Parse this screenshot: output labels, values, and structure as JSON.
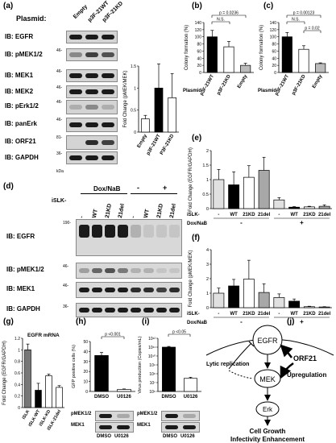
{
  "panels": {
    "a": {
      "label": "(a)",
      "plasmid_label": "Plasmid:",
      "lanes": [
        "Empty",
        "p3F-21WT",
        "p3F-21KD"
      ],
      "blots": [
        {
          "name": "IB: EGFR",
          "mw": ""
        },
        {
          "name": "IB: pMEK1/2",
          "mw": "46-"
        },
        {
          "name": "IB: MEK1",
          "mw": "46-"
        },
        {
          "name": "IB: MEK2",
          "mw": "46-"
        },
        {
          "name": "IB: pErk1/2",
          "mw": "46-"
        },
        {
          "name": "IB: panErk",
          "mw": "46-"
        },
        {
          "name": "IB: ORF21",
          "mw": "81-"
        },
        {
          "name": "IB: GAPDH",
          "mw": "36-"
        }
      ],
      "kda": "kDa"
    },
    "b": {
      "label": "(b)",
      "pval": "p = 0.0236",
      "ns": "N.S.",
      "plasmid": "Plasmid"
    },
    "c": {
      "label": "(c)",
      "pval": "p = 0.00123",
      "ns": "N.S.",
      "pval2": "p = 0.02",
      "plasmid": "Plasmid"
    },
    "d": {
      "label": "(d)",
      "dox_label": "Dox/NaB",
      "dox_minus": "-",
      "dox_plus": "+",
      "islk": "iSLK-",
      "lanes": [
        "-",
        "WT",
        "21KD",
        "21del",
        "-",
        "WT",
        "21KD",
        "21del"
      ],
      "blots": [
        {
          "name": "IB: EGFR",
          "mw": "190-"
        },
        {
          "name": "IB: pMEK1/2",
          "mw": "46-"
        },
        {
          "name": "IB: MEK1",
          "mw": "46-"
        },
        {
          "name": "IB: GAPDH",
          "mw": "36-"
        }
      ]
    },
    "e": {
      "label": "(e)",
      "islk": "iSLK-",
      "dox": "Dox/NaB",
      "minus": "-",
      "plus": "+"
    },
    "f": {
      "label": "(f)",
      "islk": "iSLK-",
      "dox": "Dox/NaB",
      "minus": "-",
      "plus": "+"
    },
    "g": {
      "label": "(g)",
      "inner_title": "EGFR mRNA"
    },
    "h": {
      "label": "(h)",
      "pval": "p <0.001",
      "blots": [
        "pMEK1/2",
        "MEK1"
      ],
      "lanes": [
        "DMSO",
        "U0126"
      ]
    },
    "i": {
      "label": "(i)",
      "pval": "p <0.05",
      "blots": [
        "pMEK1/2",
        "MEK1"
      ],
      "lanes": [
        "DMSO",
        "U0126"
      ]
    },
    "j": {
      "label": "(j)",
      "nodes": [
        "EGFR",
        "MEK",
        "Erk"
      ],
      "orf21": "ORF21",
      "upregulation": "Upregulation",
      "lytic": "Lytic replication",
      "outcome_line1": "Cell Growth",
      "outcome_line2": "Infectivity Enhancement"
    }
  },
  "chart_data": [
    {
      "panel": "a",
      "type": "bar",
      "categories": [
        "Empty",
        "p3F-21WT",
        "P3F-21KD"
      ],
      "values": [
        0.3,
        1.0,
        0.78
      ],
      "errors": [
        0.08,
        0.55,
        0.55
      ],
      "ylabel": "Fold Change (pMEK/MEK)",
      "ylim": [
        0,
        1.5
      ],
      "yticks": [
        "0",
        "0.5",
        "1",
        "1.5"
      ]
    },
    {
      "panel": "b",
      "type": "bar",
      "categories": [
        "p3F-21WT",
        "p3F-21KD",
        "Empty"
      ],
      "values": [
        100,
        72,
        20
      ],
      "errors": [
        18,
        15,
        6
      ],
      "ylabel": "Colony formation (%)",
      "ylim": [
        0,
        140
      ],
      "yticks": [
        "0",
        "20",
        "40",
        "60",
        "80",
        "100",
        "120",
        "140"
      ]
    },
    {
      "panel": "c",
      "type": "bar",
      "categories": [
        "p3F-21WT",
        "p3F-21KD",
        "Empty"
      ],
      "values": [
        100,
        65,
        25
      ],
      "errors": [
        12,
        10,
        2
      ],
      "ylabel": "Colony formation (%)",
      "ylim": [
        0,
        140
      ],
      "yticks": [
        "0",
        "20",
        "40",
        "60",
        "80",
        "100",
        "120",
        "140"
      ]
    },
    {
      "panel": "e",
      "type": "bar",
      "categories": [
        "-",
        "WT",
        "21KD",
        "21del",
        "-",
        "WT",
        "21KD",
        "21del"
      ],
      "values": [
        1.0,
        0.82,
        1.08,
        1.32,
        0.3,
        0.05,
        0.06,
        0.08
      ],
      "errors": [
        0.35,
        0.45,
        0.4,
        0.45,
        0.08,
        0.02,
        0.02,
        0.05
      ],
      "ylabel": "Fold Change (EGFR/GAPDH)",
      "ylim": [
        0,
        2
      ],
      "yticks": [
        "0",
        "0.5",
        "1",
        "1.5",
        "2"
      ]
    },
    {
      "panel": "f",
      "type": "bar",
      "categories": [
        "-",
        "WT",
        "21KD",
        "21del",
        "-",
        "WT",
        "21KD",
        "21del"
      ],
      "values": [
        1.0,
        1.5,
        1.97,
        1.05,
        0.7,
        0.45,
        0.07,
        0.05
      ],
      "errors": [
        0.35,
        0.45,
        1.3,
        0.6,
        0.25,
        0.15,
        0.03,
        0.02
      ],
      "ylabel": "Fold Change (pMEK/MEK)",
      "ylim": [
        0,
        4
      ],
      "yticks": [
        "0",
        "1",
        "2",
        "3",
        "4"
      ]
    },
    {
      "panel": "g",
      "type": "bar",
      "categories": [
        "iSLK",
        "iSLK-WT",
        "iSLK-KD",
        "iSLK-21del"
      ],
      "values": [
        1.0,
        0.3,
        0.55,
        0.35
      ],
      "errors": [
        0.1,
        0.12,
        0.03,
        0.03
      ],
      "ylabel": "Fold Change (EGFR/GAPDH)",
      "ylim": [
        0,
        1.2
      ],
      "yticks": [
        "0",
        "0.2",
        "0.4",
        "0.6",
        "0.8",
        "1",
        "1.2"
      ]
    },
    {
      "panel": "h",
      "type": "bar",
      "categories": [
        "DMSO",
        "U0126"
      ],
      "values": [
        36,
        2
      ],
      "errors": [
        3,
        0.5
      ],
      "ylabel": "GFP positive cells (%)",
      "ylim": [
        0,
        50
      ],
      "yticks": [
        "0",
        "10",
        "20",
        "30",
        "40",
        "50"
      ]
    },
    {
      "panel": "i",
      "type": "bar",
      "categories": [
        "DMSO",
        "U0126"
      ],
      "values": [
        100000000000,
        30000000
      ],
      "errors": [
        20000000000,
        10000000
      ],
      "ylabel": "Virus production (Copies/mL)",
      "yscale": "log",
      "ylim": [
        1000000,
        1000000000000
      ],
      "yticks": [
        "10⁶",
        "10⁷",
        "10⁸",
        "10⁹",
        "10¹⁰",
        "10¹¹",
        "10¹²"
      ]
    }
  ]
}
